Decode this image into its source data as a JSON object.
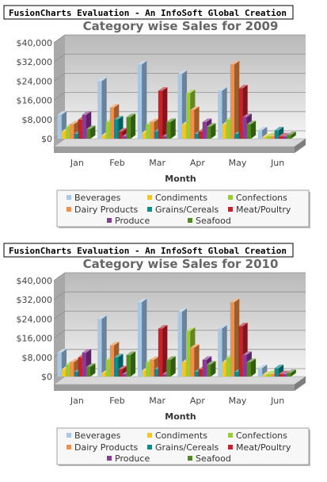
{
  "watermark": "FusionCharts Evaluation - An InfoSoft Global Creation",
  "chart_data": [
    {
      "type": "bar",
      "title": "Category wise Sales for 2009",
      "xlabel": "Month",
      "ylabel": "",
      "ylim": [
        0,
        40000
      ],
      "yticks": [
        "$0",
        "$8,000",
        "$16,000",
        "$24,000",
        "$32,000",
        "$40,000"
      ],
      "categories": [
        "Jan",
        "Feb",
        "Mar",
        "Apr",
        "May",
        "Jun"
      ],
      "legend_position": "bottom",
      "series": [
        {
          "name": "Beverages",
          "color": "#a6c8e8",
          "values": [
            10000,
            24000,
            31000,
            27000,
            20000,
            3500
          ]
        },
        {
          "name": "Condiments",
          "color": "#f3c623",
          "values": [
            3000,
            1500,
            2500,
            6000,
            6000,
            700
          ]
        },
        {
          "name": "Confections",
          "color": "#9acd32",
          "values": [
            5000,
            7000,
            6000,
            19000,
            8000,
            1000
          ]
        },
        {
          "name": "Dairy Products",
          "color": "#f29049",
          "values": [
            6000,
            13000,
            7000,
            12000,
            31000,
            1000
          ]
        },
        {
          "name": "Grains/Cereals",
          "color": "#0e8b8b",
          "values": [
            2000,
            8000,
            3000,
            2000,
            2000,
            3500
          ]
        },
        {
          "name": "Meat/Poultry",
          "color": "#c3252c",
          "values": [
            8000,
            3000,
            20000,
            3000,
            21000,
            1000
          ]
        },
        {
          "name": "Produce",
          "color": "#8b3a96",
          "values": [
            10000,
            1000,
            1000,
            7000,
            9000,
            1000
          ]
        },
        {
          "name": "Seafood",
          "color": "#4e8c1e",
          "values": [
            4000,
            9000,
            7000,
            5000,
            6000,
            1500
          ]
        }
      ]
    },
    {
      "type": "bar",
      "title": "Category wise Sales for 2010",
      "xlabel": "Month",
      "ylabel": "",
      "ylim": [
        0,
        40000
      ],
      "yticks": [
        "$0",
        "$8,000",
        "$16,000",
        "$24,000",
        "$32,000",
        "$40,000"
      ],
      "categories": [
        "Jan",
        "Feb",
        "Mar",
        "Apr",
        "May",
        "Jun"
      ],
      "legend_position": "bottom",
      "series": [
        {
          "name": "Beverages",
          "color": "#a6c8e8",
          "values": [
            10000,
            24000,
            31000,
            27000,
            20000,
            3500
          ]
        },
        {
          "name": "Condiments",
          "color": "#f3c623",
          "values": [
            3000,
            1500,
            2500,
            6000,
            6000,
            700
          ]
        },
        {
          "name": "Confections",
          "color": "#9acd32",
          "values": [
            5000,
            7000,
            6000,
            19000,
            8000,
            1000
          ]
        },
        {
          "name": "Dairy Products",
          "color": "#f29049",
          "values": [
            6000,
            13000,
            7000,
            12000,
            31000,
            1000
          ]
        },
        {
          "name": "Grains/Cereals",
          "color": "#0e8b8b",
          "values": [
            2000,
            8000,
            3000,
            2000,
            2000,
            3500
          ]
        },
        {
          "name": "Meat/Poultry",
          "color": "#c3252c",
          "values": [
            8000,
            3000,
            20000,
            3000,
            21000,
            1000
          ]
        },
        {
          "name": "Produce",
          "color": "#8b3a96",
          "values": [
            10000,
            1000,
            1000,
            7000,
            9000,
            1000
          ]
        },
        {
          "name": "Seafood",
          "color": "#4e8c1e",
          "values": [
            4000,
            9000,
            7000,
            5000,
            6000,
            1500
          ]
        }
      ]
    }
  ]
}
